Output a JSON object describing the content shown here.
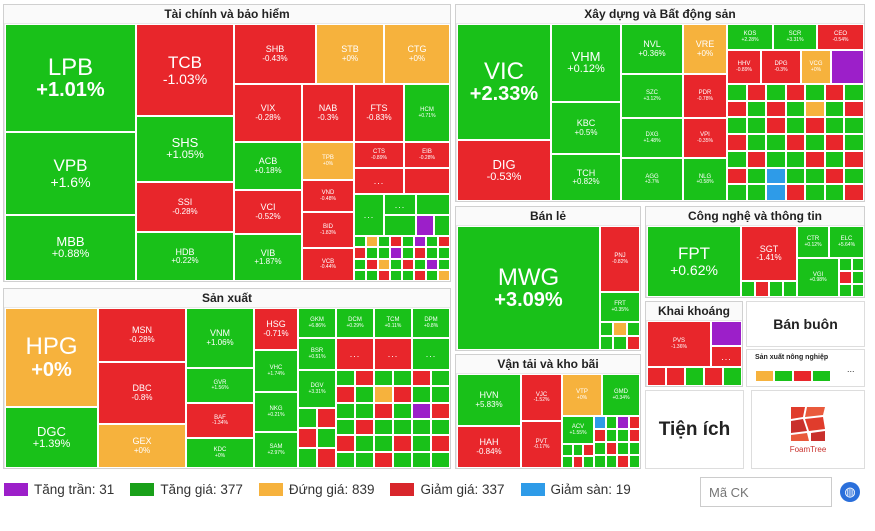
{
  "colors": {
    "up": "#19c119",
    "down": "#e8262b",
    "flat": "#f6b23d",
    "ceiling": "#9c1fc9",
    "floor": "#2e9be8"
  },
  "sectors": {
    "finance": "Tài chính và bảo hiểm",
    "construction": "Xây dựng và Bất động sản",
    "manufacturing": "Sản xuất",
    "retail": "Bán lẻ",
    "tech": "Công nghệ và thông tin",
    "mining": "Khai khoáng",
    "wholesale": "Bán buôn",
    "transport": "Vận tải và kho bãi",
    "agri": "Sản xuất nông nghiệp",
    "utilities": "Tiện ích"
  },
  "finance": [
    {
      "t": "LPB",
      "p": "+1.01%"
    },
    {
      "t": "VPB",
      "p": "+1.6%"
    },
    {
      "t": "MBB",
      "p": "+0.88%"
    },
    {
      "t": "TCB",
      "p": "-1.03%"
    },
    {
      "t": "SHS",
      "p": "+1.05%"
    },
    {
      "t": "SSI",
      "p": "-0.28%"
    },
    {
      "t": "HDB",
      "p": "+0.22%"
    },
    {
      "t": "SHB",
      "p": "-0.43%"
    },
    {
      "t": "STB",
      "p": "+0%"
    },
    {
      "t": "CTG",
      "p": "+0%"
    },
    {
      "t": "VIX",
      "p": "-0.28%"
    },
    {
      "t": "NAB",
      "p": "-0.3%"
    },
    {
      "t": "FTS",
      "p": "-0.83%"
    },
    {
      "t": "HCM",
      "p": "+0.71%"
    },
    {
      "t": "ACB",
      "p": "+0.18%"
    },
    {
      "t": "TPB",
      "p": "+0%"
    },
    {
      "t": "CTS",
      "p": "-0.89%"
    },
    {
      "t": "EIB",
      "p": "-0.28%"
    },
    {
      "t": "VCI",
      "p": "-0.52%"
    },
    {
      "t": "VND",
      "p": "-0.48%"
    },
    {
      "t": "BID",
      "p": "-1.83%"
    },
    {
      "t": "VIB",
      "p": "+1.87%"
    },
    {
      "t": "VCB",
      "p": "-0.44%"
    }
  ],
  "construction": [
    {
      "t": "VIC",
      "p": "+2.33%"
    },
    {
      "t": "DIG",
      "p": "-0.53%"
    },
    {
      "t": "VHM",
      "p": "+0.12%"
    },
    {
      "t": "KBC",
      "p": "+0.5%"
    },
    {
      "t": "TCH",
      "p": "+0.82%"
    },
    {
      "t": "NVL",
      "p": "+0.36%"
    },
    {
      "t": "VRE",
      "p": "+0%"
    },
    {
      "t": "KOS",
      "p": "+2.28%"
    },
    {
      "t": "SCR",
      "p": "+3.31%"
    },
    {
      "t": "CEO",
      "p": "-0.54%"
    },
    {
      "t": "HHV",
      "p": "-0.89%"
    },
    {
      "t": "DPG",
      "p": "-0.3%"
    },
    {
      "t": "VCG",
      "p": "+0%"
    },
    {
      "t": "SZC",
      "p": "+3.12%"
    },
    {
      "t": "PDR",
      "p": "-0.78%"
    },
    {
      "t": "DXG",
      "p": "+1.48%"
    },
    {
      "t": "VPI",
      "p": "-0.35%"
    },
    {
      "t": "AGG",
      "p": "+3.7%"
    },
    {
      "t": "NLG",
      "p": "+0.58%"
    }
  ],
  "manufacturing": [
    {
      "t": "HPG",
      "p": "+0%"
    },
    {
      "t": "DGC",
      "p": "+1.39%"
    },
    {
      "t": "MSN",
      "p": "-0.28%"
    },
    {
      "t": "DBC",
      "p": "-0.8%"
    },
    {
      "t": "GEX",
      "p": "+0%"
    },
    {
      "t": "VNM",
      "p": "+1.06%"
    },
    {
      "t": "GVR",
      "p": "+1.56%"
    },
    {
      "t": "BAF",
      "p": "-1.34%"
    },
    {
      "t": "KDC",
      "p": "+0%"
    },
    {
      "t": "HSG",
      "p": "-0.71%"
    },
    {
      "t": "VHC",
      "p": "+1.74%"
    },
    {
      "t": "NKG",
      "p": "+0.21%"
    },
    {
      "t": "SAM",
      "p": "+2.97%"
    },
    {
      "t": "GKM",
      "p": "+6.86%"
    },
    {
      "t": "DCM",
      "p": "+0.29%"
    },
    {
      "t": "TCM",
      "p": "+0.11%"
    },
    {
      "t": "DPM",
      "p": "+0.8%"
    },
    {
      "t": "BSR",
      "p": "+0.51%"
    },
    {
      "t": "DGV",
      "p": "+3.31%"
    }
  ],
  "retail": [
    {
      "t": "MWG",
      "p": "+3.09%"
    },
    {
      "t": "PNJ",
      "p": "-0.82%"
    },
    {
      "t": "FRT",
      "p": "+0.35%"
    }
  ],
  "tech": [
    {
      "t": "FPT",
      "p": "+0.62%"
    },
    {
      "t": "SGT",
      "p": "-1.41%"
    },
    {
      "t": "CTR",
      "p": "+0.12%"
    },
    {
      "t": "ELC",
      "p": "+5.64%"
    },
    {
      "t": "VGI",
      "p": "+0.98%"
    }
  ],
  "mining": [
    {
      "t": "PVS",
      "p": "-1.36%"
    }
  ],
  "transport": [
    {
      "t": "HVN",
      "p": "+5.83%"
    },
    {
      "t": "HAH",
      "p": "-0.84%"
    },
    {
      "t": "VJC",
      "p": "-1.52%"
    },
    {
      "t": "PVT",
      "p": "-0.17%"
    },
    {
      "t": "VTP",
      "p": "+0%"
    },
    {
      "t": "GMD",
      "p": "+0.34%"
    },
    {
      "t": "ACV",
      "p": "+1.55%"
    }
  ],
  "more": "...",
  "logo_text": "FoamTree",
  "legend": [
    {
      "label": "Tăng trần: 31",
      "color": "#9c1fc9"
    },
    {
      "label": "Tăng giá: 377",
      "color": "#19a019"
    },
    {
      "label": "Đứng giá: 839",
      "color": "#f6b23d"
    },
    {
      "label": "Giảm giá: 337",
      "color": "#d8262b"
    },
    {
      "label": "Giảm sàn: 19",
      "color": "#2e9be8"
    }
  ],
  "search": {
    "placeholder": "Mã CK"
  }
}
